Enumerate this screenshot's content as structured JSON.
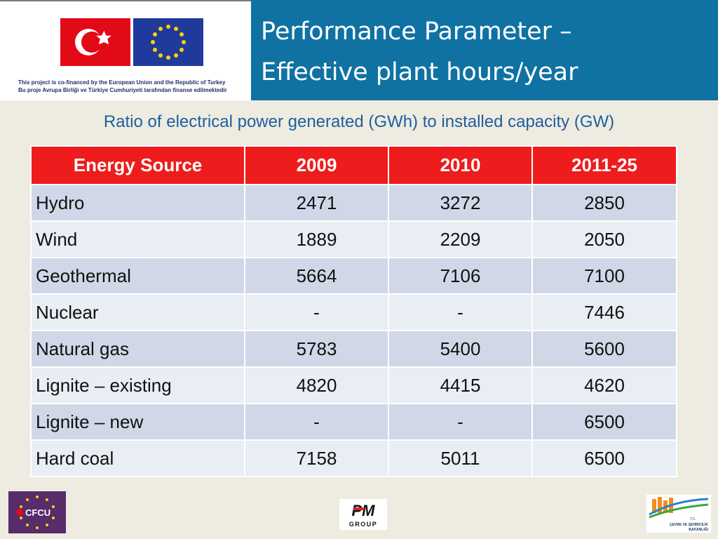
{
  "header": {
    "title": "Performance Parameter –\nEffective plant hours/year",
    "flag_caption_line1": "This project is co-financed by the European Union and the Republic of Turkey",
    "flag_caption_line2": "Bu proje Avrupa Birliği ve Türkiye Cumhuriyeti tarafından finanse edilmektedir"
  },
  "subtitle": "Ratio of electrical power generated (GWh) to installed capacity (GW)",
  "table": {
    "columns": [
      "Energy Source",
      "2009",
      "2010",
      "2011-25"
    ],
    "rows": [
      [
        "Hydro",
        "2471",
        "3272",
        "2850"
      ],
      [
        "Wind",
        "1889",
        "2209",
        "2050"
      ],
      [
        "Geothermal",
        "5664",
        "7106",
        "7100"
      ],
      [
        "Nuclear",
        "-",
        "-",
        "7446"
      ],
      [
        "Natural gas",
        "5783",
        "5400",
        "5600"
      ],
      [
        "Lignite – existing",
        "4820",
        "4415",
        "4620"
      ],
      [
        "Lignite – new",
        "-",
        "-",
        "6500"
      ],
      [
        "Hard coal",
        "7158",
        "5011",
        "6500"
      ]
    ]
  },
  "footer": {
    "cfcu_label": "CFCU",
    "pm_label": "PM",
    "pm_sub": "GROUP",
    "ministry_line1": "T.C.",
    "ministry_line2": "ÇEVRE VE ŞEHİRCİLİK",
    "ministry_line3": "BAKANLIĞI"
  },
  "colors": {
    "title_bg": "#0f72a3",
    "header_row": "#ee1c1c",
    "row_odd": "#d0d8e8",
    "row_even": "#e9edf4",
    "subtitle": "#1f5e9e"
  }
}
